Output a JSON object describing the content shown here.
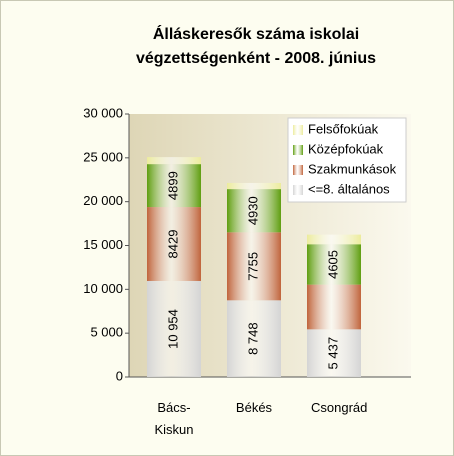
{
  "chart_data": {
    "type": "stacked_bar",
    "title": "Álláskeresők száma iskolai végzettségenként - 2008. június",
    "categories": [
      "Bács-Kiskun",
      "Békés",
      "Csongrád"
    ],
    "series": [
      {
        "name": "<=8. általános",
        "color": "#d4d4d4",
        "values": [
          10954,
          8748,
          5437
        ],
        "value_labels": [
          "10 954",
          "8 748",
          "5 437"
        ]
      },
      {
        "name": "Szakmunkások",
        "color": "#c0643c",
        "values": [
          8429,
          7755,
          5100
        ],
        "value_labels": [
          "8429",
          "7755",
          null
        ]
      },
      {
        "name": "Középfokúak",
        "color": "#5f9e10",
        "values": [
          4899,
          4930,
          4605
        ],
        "value_labels": [
          "4899",
          "4930",
          "4605"
        ]
      },
      {
        "name": "Felsőfokúak",
        "color": "#ecec9c",
        "values": [
          800,
          700,
          1100
        ]
      }
    ],
    "ylim": [
      0,
      30000
    ],
    "yticks": [
      0,
      {
        "value": 5000,
        "label": "5 000"
      },
      {
        "value": 10000,
        "label": "10 000"
      },
      {
        "value": 15000,
        "label": "15 000"
      },
      {
        "value": 20000,
        "label": "20 000"
      },
      {
        "value": 25000,
        "label": "25 000"
      },
      {
        "value": 30000,
        "label": "30 000"
      }
    ],
    "legend": "upper right"
  }
}
